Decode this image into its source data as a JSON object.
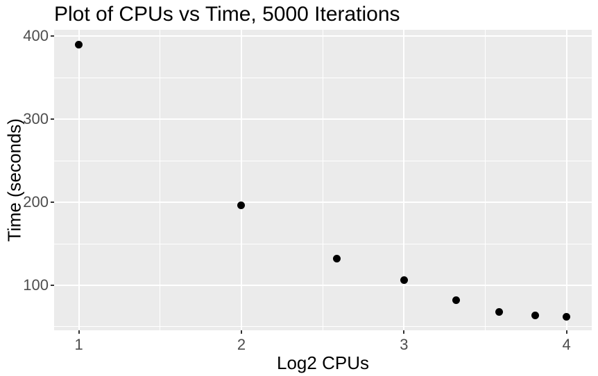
{
  "figure": {
    "title": "Plot of CPUs vs Time, 5000 Iterations"
  },
  "chart_data": {
    "type": "scatter",
    "title": "Plot of CPUs vs Time, 5000 Iterations",
    "xlabel": "Log2 CPUs",
    "ylabel": "Time (seconds)",
    "points": [
      [
        1.0,
        390
      ],
      [
        2.0,
        196
      ],
      [
        2.585,
        132
      ],
      [
        3.0,
        106
      ],
      [
        3.322,
        82
      ],
      [
        3.585,
        68
      ],
      [
        3.807,
        64
      ],
      [
        4.0,
        62
      ]
    ],
    "xlim": [
      0.848,
      4.155
    ],
    "ylim": [
      45.8,
      407.9
    ],
    "x_ticks": {
      "major": [
        1,
        2,
        3,
        4
      ],
      "labels": [
        "1",
        "2",
        "3",
        "4"
      ],
      "minor": [
        1.5,
        2.5,
        3.5
      ]
    },
    "y_ticks": {
      "major": [
        100,
        200,
        300,
        400
      ],
      "labels": [
        "100",
        "200",
        "300",
        "400"
      ],
      "minor": [
        50,
        150,
        250,
        350
      ]
    },
    "grid": true,
    "legend": "none"
  },
  "style": {
    "background": "#FFFFFF",
    "panel_bg": "#EBEBEB",
    "grid_color": "#FFFFFF",
    "point_color": "#000000",
    "tick_label_color": "#4D4D4D",
    "tick_mark_color": "#333333",
    "text_color": "#000000"
  }
}
